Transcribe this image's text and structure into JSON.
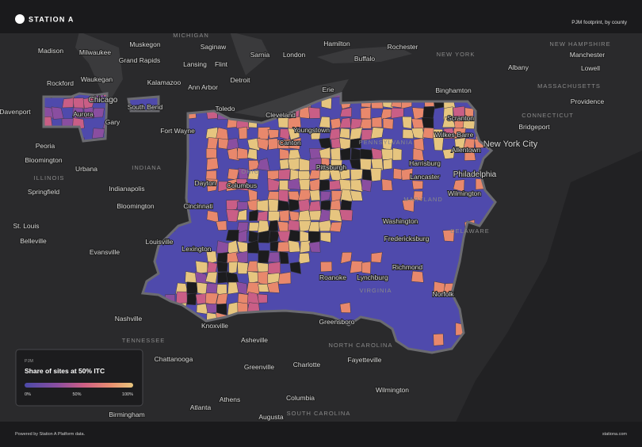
{
  "header": {
    "brand": "STATION A",
    "subtitle": "PJM footprint, by county"
  },
  "map": {
    "place_labels": [
      "Madison",
      "Milwaukee",
      "Muskegon",
      "Grand Rapids",
      "Saginaw",
      "Flint",
      "Lansing",
      "Sarnia",
      "London",
      "Hamilton",
      "Rochester",
      "Buffalo",
      "Albany",
      "Manchester",
      "Lowell",
      "Providence",
      "Bridgeport",
      "New York City",
      "Rockford",
      "Waukegan",
      "Chicago",
      "Kalamazoo",
      "Ann Arbor",
      "Detroit",
      "Toledo",
      "Erie",
      "Binghamton",
      "Cleveland",
      "Youngstown",
      "Scranton",
      "Wilkes-Barre",
      "Allentown",
      "South Bend",
      "Aurora",
      "Gary",
      "Davenport",
      "Fort Wayne",
      "Canton",
      "Peoria",
      "Bloomington",
      "Urbana",
      "Harrisburg",
      "Pittsburgh",
      "Philadelphia",
      "Lancaster",
      "Dayton",
      "Columbus",
      "Indianapolis",
      "Springfield",
      "Wilmington",
      "Bloomington",
      "Cincinnati",
      "Washington",
      "St. Louis",
      "Belleville",
      "Louisville",
      "Fredericksburg",
      "Evansville",
      "Lexington",
      "Richmond",
      "Roanoke",
      "Lynchburg",
      "Norfolk",
      "Nashville",
      "Knoxville",
      "Greensboro",
      "Asheville",
      "Chattanooga",
      "Greenville",
      "Charlotte",
      "Fayetteville",
      "Wilmington",
      "Columbia",
      "Athens",
      "Atlanta",
      "Birmingham",
      "Augusta"
    ],
    "region_labels": [
      "MICHIGAN",
      "NEW YORK",
      "NEW HAMPSHIRE",
      "MASSACHUSETTS",
      "CONNECTICUT",
      "OHIO",
      "INDIANA",
      "ILLINOIS",
      "PENNSYLVANIA",
      "MARYLAND",
      "DELAWARE",
      "VIRGINIA",
      "TENNESSEE",
      "NORTH CAROLINA",
      "SOUTH CAROLINA"
    ]
  },
  "legend": {
    "eyebrow": "PJM",
    "title": "Share of sites at 50% ITC",
    "ticks": [
      "0%",
      "50%",
      "100%"
    ]
  },
  "footer": {
    "note": "Powered by Station A Platform data.",
    "site": "stationa.com"
  }
}
